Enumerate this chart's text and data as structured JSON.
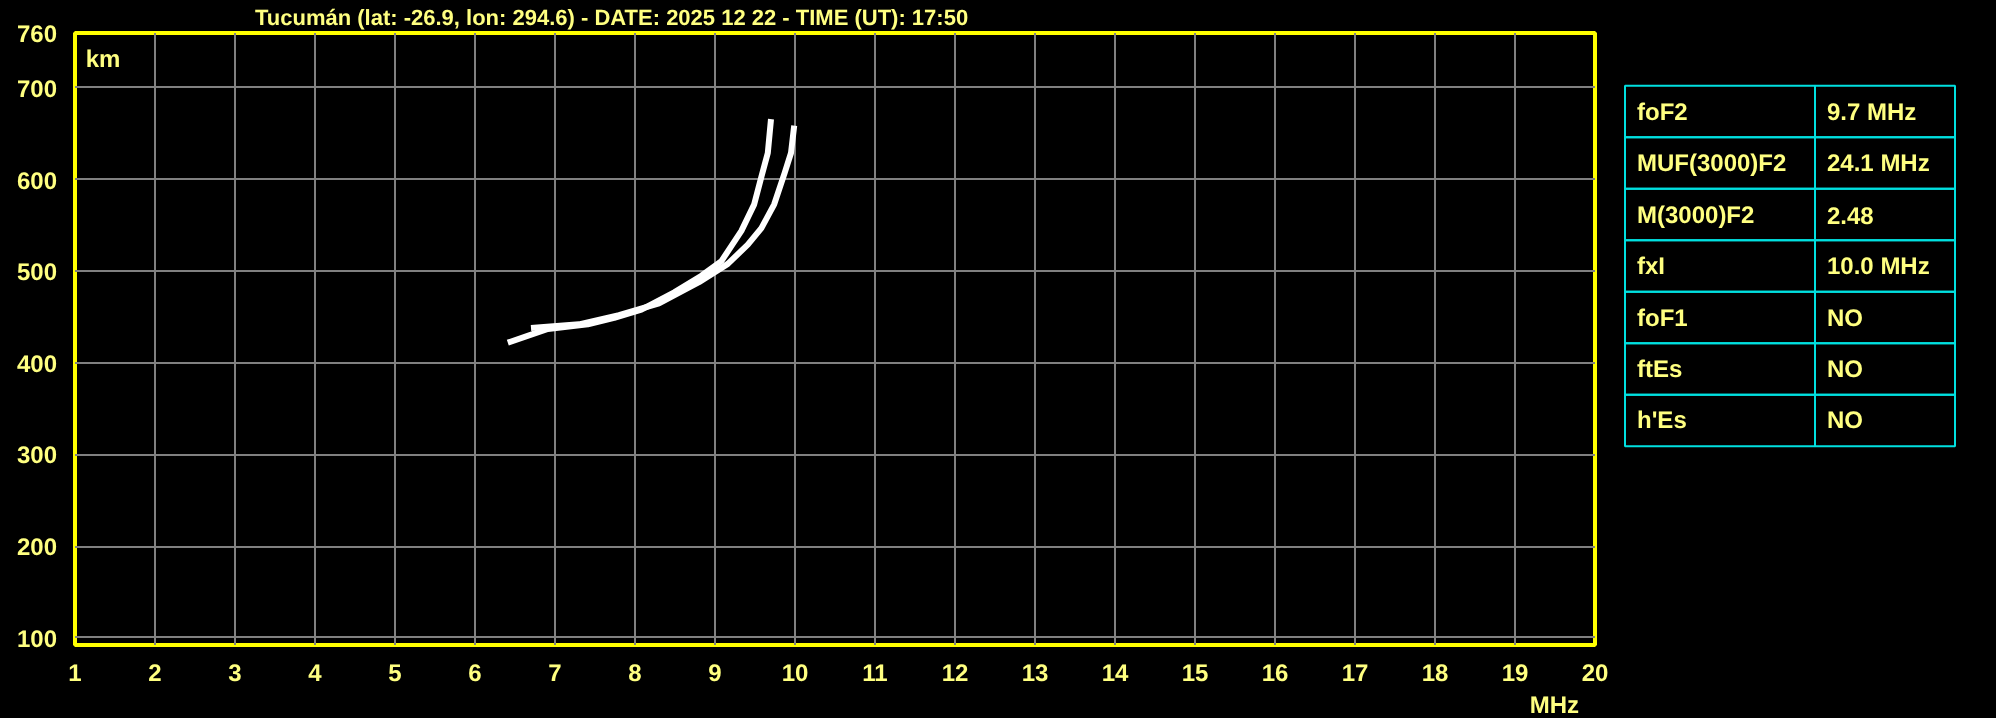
{
  "chart_data": [
    {
      "type": "line",
      "title": "Tucumán (lat: -26.9, lon: 294.6) - DATE: 2025 12 22 - TIME (UT): 17:50",
      "xlabel": "MHz",
      "ylabel": "km",
      "series": [
        {
          "color": "#ffffff",
          "x": [
            6.41,
            6.91,
            7.41,
            7.74,
            8.08,
            8.49,
            8.83,
            9.08,
            9.33,
            9.49,
            9.58,
            9.66,
            9.7
          ],
          "values": [
            422,
            437,
            442,
            449,
            458,
            477,
            495,
            511,
            544,
            573,
            603,
            629,
            666
          ]
        },
        {
          "color": "#ffffff",
          "x": [
            6.7,
            7.3,
            7.8,
            8.3,
            8.8,
            9.16,
            9.41,
            9.58,
            9.74,
            9.87,
            9.95,
            9.99
          ],
          "values": [
            438,
            442,
            452,
            465,
            488,
            508,
            529,
            547,
            573,
            607,
            629,
            659
          ]
        }
      ],
      "xlim": [
        1,
        20
      ],
      "xticks": [
        1,
        2,
        3,
        4,
        5,
        6,
        7,
        8,
        9,
        10,
        11,
        12,
        13,
        14,
        15,
        16,
        17,
        18,
        19,
        20
      ],
      "ylim": [
        92,
        760
      ],
      "yticks": [
        100,
        200,
        300,
        400,
        500,
        600,
        700,
        760
      ],
      "grid": true
    },
    {
      "type": "other",
      "cell_labels": [
        [
          "foF2",
          "9.7 MHz"
        ],
        [
          "MUF(3000)F2",
          "24.1 MHz"
        ],
        [
          "M(3000)F2",
          "2.48"
        ],
        [
          "fxI",
          "10.0 MHz"
        ],
        [
          "foF1",
          "NO"
        ],
        [
          "ftEs",
          "NO"
        ],
        [
          "h'Es",
          "NO"
        ]
      ]
    }
  ]
}
